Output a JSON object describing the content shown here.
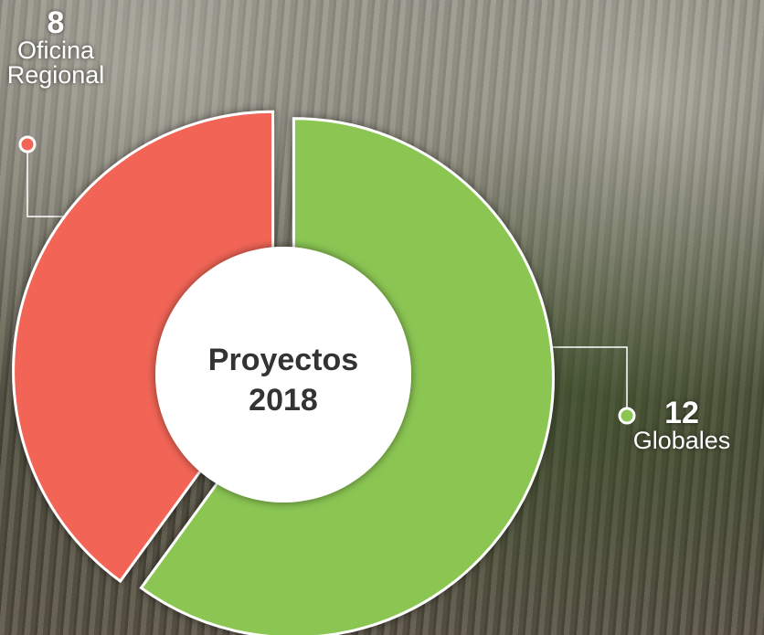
{
  "chart_data": {
    "type": "donut",
    "center_label": [
      "Proyectos",
      "2018"
    ],
    "categories": [
      "Globales",
      "Oficina Regional"
    ],
    "values": [
      12,
      8
    ],
    "colors": [
      "#8bc652",
      "#f26556"
    ]
  }
}
